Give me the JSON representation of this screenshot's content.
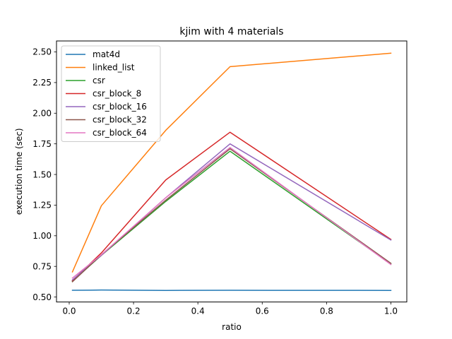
{
  "chart_data": {
    "type": "line",
    "title": "kjim with 4 materials",
    "xlabel": "ratio",
    "ylabel": "execution time (sec)",
    "xlim": [
      -0.0395,
      1.0495
    ],
    "ylim": [
      0.4595,
      2.5895
    ],
    "xticks": [
      0.0,
      0.2,
      0.4,
      0.6,
      0.8,
      1.0
    ],
    "xtick_labels": [
      "0.0",
      "0.2",
      "0.4",
      "0.6",
      "0.8",
      "1.0"
    ],
    "yticks": [
      0.5,
      0.75,
      1.0,
      1.25,
      1.5,
      1.75,
      2.0,
      2.25,
      2.5
    ],
    "ytick_labels": [
      "0.50",
      "0.75",
      "1.00",
      "1.25",
      "1.50",
      "1.75",
      "2.00",
      "2.25",
      "2.50"
    ],
    "grid": false,
    "legend": "top-left",
    "x": [
      0.01,
      0.1,
      0.3,
      0.5,
      1.0
    ],
    "series": [
      {
        "name": "mat4d",
        "color": "#1f77b4",
        "values": [
          0.555,
          0.557,
          0.554,
          0.555,
          0.554
        ]
      },
      {
        "name": "linked_list",
        "color": "#ff7f0e",
        "values": [
          0.705,
          1.245,
          1.86,
          2.38,
          2.49
        ]
      },
      {
        "name": "csr",
        "color": "#2ca02c",
        "values": [
          0.63,
          0.84,
          1.28,
          1.69,
          0.77
        ]
      },
      {
        "name": "csr_block_8",
        "color": "#d62728",
        "values": [
          0.635,
          0.86,
          1.455,
          1.845,
          0.97
        ]
      },
      {
        "name": "csr_block_16",
        "color": "#9467bd",
        "values": [
          0.64,
          0.84,
          1.31,
          1.75,
          0.965
        ]
      },
      {
        "name": "csr_block_32",
        "color": "#8c564b",
        "values": [
          0.625,
          0.845,
          1.29,
          1.71,
          0.775
        ]
      },
      {
        "name": "csr_block_64",
        "color": "#e377c2",
        "values": [
          0.655,
          0.845,
          1.31,
          1.72,
          0.765
        ]
      }
    ]
  }
}
